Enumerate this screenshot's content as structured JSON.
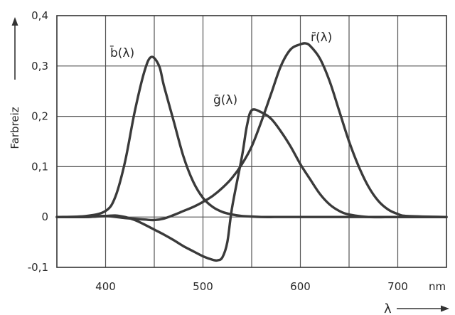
{
  "chart_data": {
    "type": "line",
    "xlabel": "λ",
    "ylabel": "Farbreiz",
    "x_unit": "nm",
    "xlim": [
      350,
      750
    ],
    "ylim": [
      -0.1,
      0.4
    ],
    "x_ticks": [
      400,
      500,
      600,
      700
    ],
    "y_ticks": [
      -0.1,
      0,
      0.1,
      0.2,
      0.3,
      0.4
    ],
    "y_tick_labels": [
      "-0,1",
      "0",
      "0,1",
      "0,2",
      "0,3",
      "0,4"
    ],
    "grid": true,
    "series": [
      {
        "name": "b̄(λ)",
        "x": [
          350,
          380,
          400,
          410,
          420,
          430,
          440,
          447,
          455,
          460,
          470,
          480,
          490,
          500,
          510,
          520,
          530,
          540,
          550,
          560,
          580,
          600,
          650,
          750
        ],
        "y": [
          0.0,
          0.002,
          0.012,
          0.04,
          0.11,
          0.21,
          0.29,
          0.318,
          0.3,
          0.26,
          0.19,
          0.12,
          0.07,
          0.038,
          0.02,
          0.01,
          0.005,
          0.002,
          0.001,
          0.0,
          0.0,
          0.0,
          0.0,
          0.0
        ]
      },
      {
        "name": "ḡ(λ)",
        "x": [
          350,
          380,
          400,
          410,
          420,
          430,
          440,
          450,
          460,
          470,
          480,
          490,
          500,
          510,
          515,
          520,
          525,
          530,
          540,
          545,
          550,
          560,
          570,
          580,
          590,
          600,
          610,
          620,
          630,
          640,
          650,
          670,
          700,
          750
        ],
        "y": [
          0.0,
          0.0,
          0.002,
          0.003,
          0.0,
          -0.006,
          -0.015,
          -0.025,
          -0.035,
          -0.046,
          -0.058,
          -0.068,
          -0.078,
          -0.085,
          -0.086,
          -0.08,
          -0.05,
          0.02,
          0.12,
          0.18,
          0.212,
          0.208,
          0.195,
          0.17,
          0.14,
          0.105,
          0.075,
          0.046,
          0.025,
          0.012,
          0.005,
          0.0,
          0.0,
          0.0
        ]
      },
      {
        "name": "r̄(λ)",
        "x": [
          350,
          380,
          400,
          420,
          440,
          450,
          460,
          470,
          480,
          490,
          500,
          510,
          520,
          530,
          540,
          550,
          560,
          570,
          580,
          590,
          600,
          605,
          610,
          620,
          630,
          640,
          650,
          660,
          670,
          680,
          690,
          700,
          710,
          750
        ],
        "y": [
          0.0,
          0.0,
          0.002,
          -0.002,
          -0.005,
          -0.006,
          -0.003,
          0.004,
          0.012,
          0.02,
          0.03,
          0.042,
          0.058,
          0.078,
          0.105,
          0.14,
          0.19,
          0.245,
          0.3,
          0.333,
          0.343,
          0.345,
          0.34,
          0.315,
          0.27,
          0.21,
          0.15,
          0.1,
          0.06,
          0.032,
          0.015,
          0.006,
          0.002,
          0.0
        ]
      }
    ]
  }
}
